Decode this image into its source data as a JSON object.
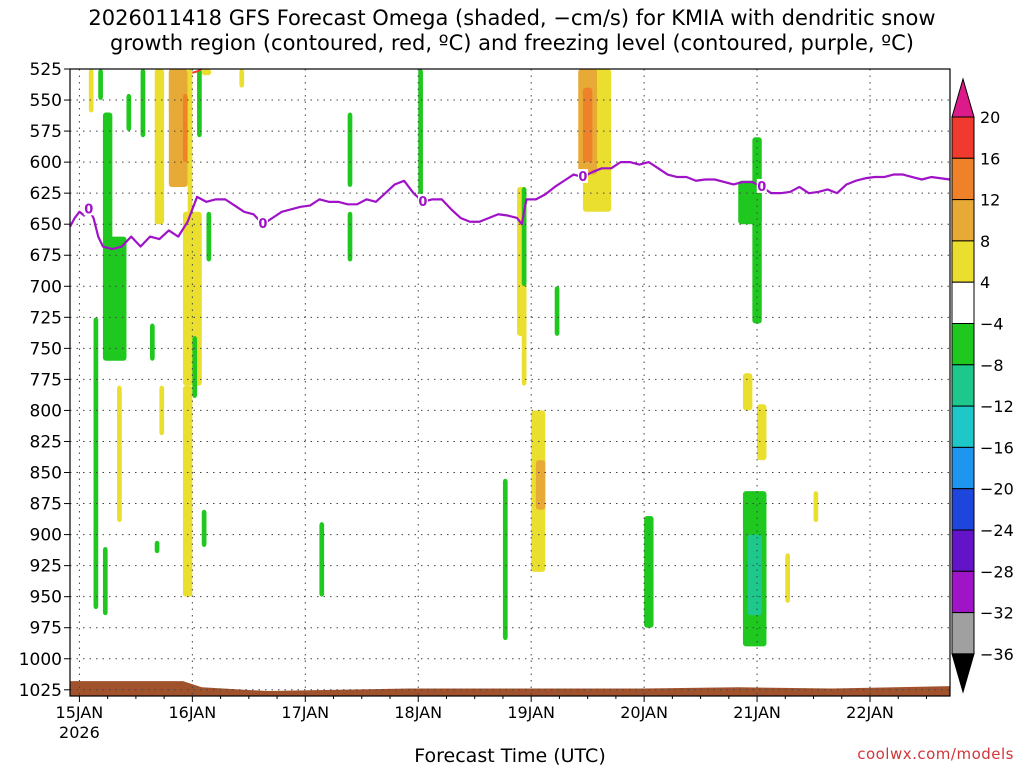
{
  "title": "2026011418 GFS Forecast Omega (shaded, −cm/s) for KMIA with dendritic snow\ngrowth region (contoured, red, ºC) and freezing level (contoured, purple, ºC)",
  "credit": "coolwx.com/models",
  "chart_data": {
    "type": "time-height cross-section",
    "title": "2026011418 GFS Forecast Omega (shaded, −cm/s) for KMIA with dendritic snow growth region (contoured, red, ºC) and freezing level (contoured, purple, ºC)",
    "xlabel": "Forecast Time (UTC)",
    "ylabel": "",
    "x_range_hours": [
      -2,
      185
    ],
    "x_ticks": [
      {
        "hour": 0,
        "label": "15JAN",
        "sublabel": "2026"
      },
      {
        "hour": 24,
        "label": "16JAN"
      },
      {
        "hour": 48,
        "label": "17JAN"
      },
      {
        "hour": 72,
        "label": "18JAN"
      },
      {
        "hour": 96,
        "label": "19JAN"
      },
      {
        "hour": 120,
        "label": "20JAN"
      },
      {
        "hour": 144,
        "label": "21JAN"
      },
      {
        "hour": 168,
        "label": "22JAN"
      }
    ],
    "y_range_hpa": [
      525,
      1030
    ],
    "y_ticks": [
      "525",
      "550",
      "575",
      "600",
      "625",
      "650",
      "675",
      "700",
      "725",
      "750",
      "775",
      "800",
      "825",
      "850",
      "875",
      "900",
      "925",
      "950",
      "975",
      "1000",
      "1025"
    ],
    "grid": true,
    "colorbar": {
      "placement": "right",
      "labels": [
        "20",
        "16",
        "12",
        "8",
        "4",
        "−4",
        "−8",
        "−12",
        "−16",
        "−20",
        "−24",
        "−28",
        "−32",
        "−36"
      ],
      "colors": [
        "#dc1a8a",
        "#ef3a2d",
        "#ef8228",
        "#e8aa36",
        "#eadf2f",
        "#ffffff",
        "#1ec81e",
        "#1ec88c",
        "#1ec8c8",
        "#1e96f0",
        "#1e46dc",
        "#6414c8",
        "#a014c8",
        "#a0a0a0",
        "#000000"
      ]
    },
    "freezing_level": {
      "color": "#a012c8",
      "label": "0",
      "points": [
        [
          -2,
          652
        ],
        [
          -1,
          645
        ],
        [
          0,
          640
        ],
        [
          1,
          643
        ],
        [
          2,
          638
        ],
        [
          3,
          645
        ],
        [
          4,
          660
        ],
        [
          5,
          668
        ],
        [
          7,
          670
        ],
        [
          9,
          668
        ],
        [
          11,
          660
        ],
        [
          13,
          668
        ],
        [
          15,
          660
        ],
        [
          17,
          662
        ],
        [
          19,
          655
        ],
        [
          21,
          660
        ],
        [
          23,
          648
        ],
        [
          25,
          628
        ],
        [
          27,
          632
        ],
        [
          29,
          630
        ],
        [
          31,
          630
        ],
        [
          33,
          635
        ],
        [
          35,
          640
        ],
        [
          37,
          642
        ],
        [
          39,
          650
        ],
        [
          41,
          645
        ],
        [
          43,
          640
        ],
        [
          45,
          638
        ],
        [
          47,
          636
        ],
        [
          49,
          635
        ],
        [
          51,
          630
        ],
        [
          53,
          632
        ],
        [
          55,
          632
        ],
        [
          57,
          634
        ],
        [
          59,
          634
        ],
        [
          61,
          630
        ],
        [
          63,
          632
        ],
        [
          65,
          625
        ],
        [
          67,
          618
        ],
        [
          69,
          615
        ],
        [
          71,
          625
        ],
        [
          73,
          632
        ],
        [
          75,
          630
        ],
        [
          77,
          630
        ],
        [
          79,
          638
        ],
        [
          81,
          645
        ],
        [
          83,
          648
        ],
        [
          85,
          648
        ],
        [
          87,
          645
        ],
        [
          89,
          642
        ],
        [
          91,
          643
        ],
        [
          93,
          645
        ],
        [
          94,
          650
        ],
        [
          95,
          630
        ],
        [
          97,
          630
        ],
        [
          99,
          626
        ],
        [
          101,
          620
        ],
        [
          103,
          615
        ],
        [
          105,
          610
        ],
        [
          107,
          612
        ],
        [
          109,
          608
        ],
        [
          111,
          605
        ],
        [
          113,
          605
        ],
        [
          115,
          600
        ],
        [
          117,
          600
        ],
        [
          119,
          602
        ],
        [
          121,
          600
        ],
        [
          123,
          605
        ],
        [
          125,
          610
        ],
        [
          127,
          612
        ],
        [
          129,
          612
        ],
        [
          131,
          615
        ],
        [
          133,
          614
        ],
        [
          135,
          614
        ],
        [
          137,
          616
        ],
        [
          139,
          618
        ],
        [
          141,
          616
        ],
        [
          143,
          616
        ],
        [
          145,
          620
        ],
        [
          147,
          625
        ],
        [
          149,
          625
        ],
        [
          151,
          624
        ],
        [
          153,
          620
        ],
        [
          155,
          625
        ],
        [
          157,
          624
        ],
        [
          159,
          622
        ],
        [
          161,
          625
        ],
        [
          163,
          618
        ],
        [
          165,
          615
        ],
        [
          167,
          613
        ],
        [
          169,
          612
        ],
        [
          171,
          612
        ],
        [
          173,
          610
        ],
        [
          175,
          610
        ],
        [
          177,
          612
        ],
        [
          179,
          614
        ],
        [
          181,
          612
        ],
        [
          183,
          613
        ],
        [
          185,
          614
        ]
      ]
    },
    "dendritic_contour": {
      "color": "#ef3a2d",
      "points": [
        [
          24,
          528
        ],
        [
          25,
          527
        ],
        [
          26,
          525
        ]
      ]
    },
    "ground": {
      "color": "#a0522d",
      "top_hpa": [
        [
          -2,
          1018
        ],
        [
          8,
          1018
        ],
        [
          22,
          1018
        ],
        [
          26,
          1023
        ],
        [
          40,
          1026
        ],
        [
          70,
          1024
        ],
        [
          96,
          1024
        ],
        [
          120,
          1024
        ],
        [
          140,
          1023
        ],
        [
          160,
          1024
        ],
        [
          185,
          1022
        ]
      ]
    },
    "omega_regions": [
      {
        "level": 4,
        "time": [
          2,
          3
        ],
        "p": [
          525,
          560
        ]
      },
      {
        "level": 4,
        "time": [
          19,
          20
        ],
        "p": [
          525,
          560
        ]
      },
      {
        "level": 4,
        "time": [
          23,
          24
        ],
        "p": [
          525,
          650
        ]
      },
      {
        "level": 4,
        "time": [
          16,
          18
        ],
        "p": [
          525,
          650
        ]
      },
      {
        "level": 8,
        "time": [
          19,
          23
        ],
        "p": [
          525,
          620
        ]
      },
      {
        "level": 12,
        "time": [
          22,
          23
        ],
        "p": [
          545,
          600
        ]
      },
      {
        "level": 4,
        "time": [
          22,
          26
        ],
        "p": [
          640,
          780
        ]
      },
      {
        "level": 4,
        "time": [
          22,
          24
        ],
        "p": [
          780,
          950
        ]
      },
      {
        "level": 4,
        "time": [
          17,
          18
        ],
        "p": [
          780,
          820
        ]
      },
      {
        "level": 4,
        "time": [
          8,
          9
        ],
        "p": [
          780,
          890
        ]
      },
      {
        "level": 4,
        "time": [
          6,
          7
        ],
        "p": [
          665,
          750
        ]
      },
      {
        "level": 4,
        "time": [
          26,
          28
        ],
        "p": [
          525,
          530
        ]
      },
      {
        "level": 4,
        "time": [
          34,
          35
        ],
        "p": [
          525,
          540
        ]
      },
      {
        "level": 4,
        "time": [
          107,
          113
        ],
        "p": [
          525,
          640
        ]
      },
      {
        "level": 8,
        "time": [
          106,
          110
        ],
        "p": [
          525,
          610
        ]
      },
      {
        "level": 12,
        "time": [
          107,
          109
        ],
        "p": [
          540,
          600
        ]
      },
      {
        "level": 4,
        "time": [
          93,
          95
        ],
        "p": [
          620,
          740
        ]
      },
      {
        "level": 4,
        "time": [
          94,
          95
        ],
        "p": [
          700,
          780
        ]
      },
      {
        "level": 4,
        "time": [
          96,
          99
        ],
        "p": [
          800,
          930
        ]
      },
      {
        "level": 8,
        "time": [
          97,
          99
        ],
        "p": [
          840,
          880
        ]
      },
      {
        "level": 4,
        "time": [
          144,
          146
        ],
        "p": [
          795,
          840
        ]
      },
      {
        "level": 4,
        "time": [
          141,
          143
        ],
        "p": [
          770,
          800
        ]
      },
      {
        "level": 4,
        "time": [
          150,
          151
        ],
        "p": [
          915,
          955
        ]
      },
      {
        "level": 4,
        "time": [
          156,
          157
        ],
        "p": [
          865,
          890
        ]
      },
      {
        "level": -4,
        "time": [
          4,
          5
        ],
        "p": [
          525,
          550
        ]
      },
      {
        "level": -4,
        "time": [
          5,
          7
        ],
        "p": [
          560,
          670
        ]
      },
      {
        "level": -4,
        "time": [
          5,
          10
        ],
        "p": [
          660,
          760
        ]
      },
      {
        "level": -4,
        "time": [
          13,
          14
        ],
        "p": [
          525,
          580
        ]
      },
      {
        "level": -4,
        "time": [
          10,
          11
        ],
        "p": [
          545,
          575
        ]
      },
      {
        "level": -4,
        "time": [
          25,
          26
        ],
        "p": [
          525,
          580
        ]
      },
      {
        "level": -4,
        "time": [
          27,
          28
        ],
        "p": [
          640,
          680
        ]
      },
      {
        "level": -4,
        "time": [
          24,
          25
        ],
        "p": [
          740,
          790
        ]
      },
      {
        "level": -4,
        "time": [
          15,
          16
        ],
        "p": [
          730,
          760
        ]
      },
      {
        "level": -4,
        "time": [
          3,
          4
        ],
        "p": [
          725,
          960
        ]
      },
      {
        "level": -4,
        "time": [
          5,
          6
        ],
        "p": [
          910,
          965
        ]
      },
      {
        "level": -4,
        "time": [
          26,
          27
        ],
        "p": [
          880,
          910
        ]
      },
      {
        "level": -4,
        "time": [
          16,
          17
        ],
        "p": [
          905,
          915
        ]
      },
      {
        "level": -4,
        "time": [
          51,
          52
        ],
        "p": [
          890,
          950
        ]
      },
      {
        "level": -4,
        "time": [
          57,
          58
        ],
        "p": [
          560,
          620
        ]
      },
      {
        "level": -4,
        "time": [
          57,
          58
        ],
        "p": [
          640,
          680
        ]
      },
      {
        "level": -4,
        "time": [
          72,
          73
        ],
        "p": [
          525,
          630
        ]
      },
      {
        "level": -4,
        "time": [
          90,
          91
        ],
        "p": [
          855,
          985
        ]
      },
      {
        "level": -4,
        "time": [
          94,
          95
        ],
        "p": [
          620,
          700
        ]
      },
      {
        "level": -4,
        "time": [
          101,
          102
        ],
        "p": [
          700,
          740
        ]
      },
      {
        "level": -4,
        "time": [
          120,
          122
        ],
        "p": [
          885,
          975
        ]
      },
      {
        "level": -4,
        "time": [
          143,
          145
        ],
        "p": [
          580,
          730
        ]
      },
      {
        "level": -4,
        "time": [
          140,
          145
        ],
        "p": [
          615,
          650
        ]
      },
      {
        "level": -4,
        "time": [
          141,
          146
        ],
        "p": [
          865,
          990
        ]
      },
      {
        "level": -8,
        "time": [
          142,
          145
        ],
        "p": [
          900,
          965
        ]
      }
    ]
  }
}
